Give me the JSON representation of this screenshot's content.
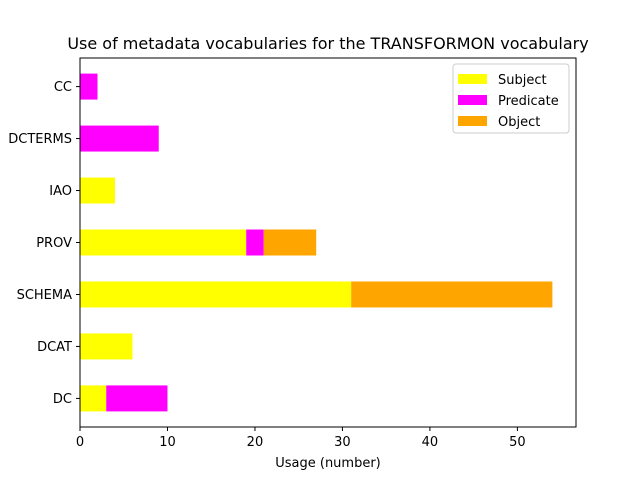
{
  "chart_data": {
    "type": "bar",
    "orientation": "horizontal",
    "stacked": true,
    "title": "Use of metadata vocabularies for the TRANSFORMON vocabulary",
    "xlabel": "Usage (number)",
    "ylabel": "",
    "categories": [
      "DC",
      "DCAT",
      "SCHEMA",
      "PROV",
      "IAO",
      "DCTERMS",
      "CC"
    ],
    "series": [
      {
        "name": "Subject",
        "color": "#ffff00",
        "values": [
          3,
          6,
          31,
          19,
          4,
          0,
          0
        ]
      },
      {
        "name": "Predicate",
        "color": "#ff00ff",
        "values": [
          7,
          0,
          0,
          2,
          0,
          9,
          2
        ]
      },
      {
        "name": "Object",
        "color": "#ffa500",
        "values": [
          0,
          0,
          23,
          6,
          0,
          0,
          0
        ]
      }
    ],
    "xlim": [
      0,
      56.7
    ],
    "xticks": [
      0,
      10,
      20,
      30,
      40,
      50
    ],
    "grid": false,
    "legend_position": "top-right"
  }
}
